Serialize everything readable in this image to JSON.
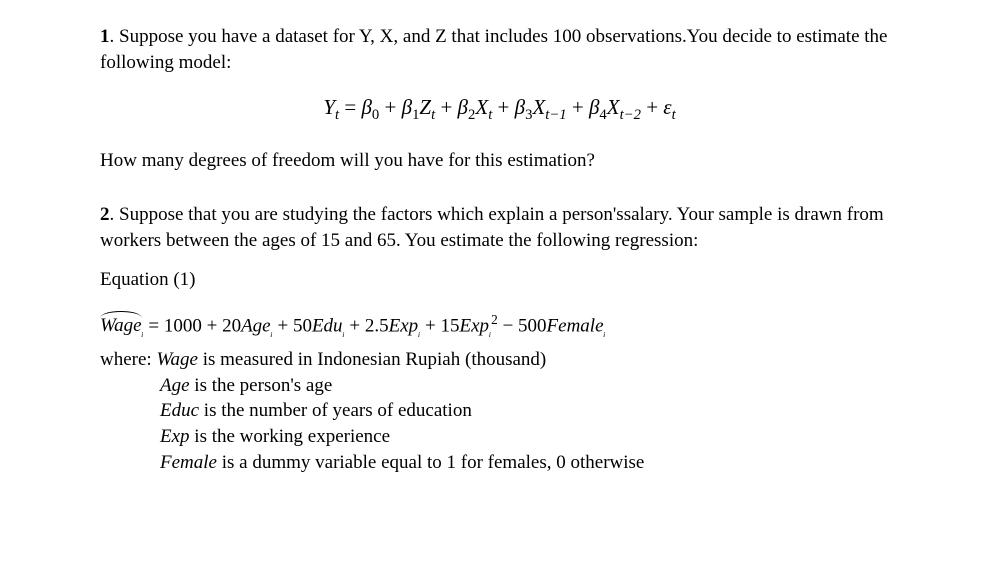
{
  "q1": {
    "number": "1",
    "intro_a": ". Suppose you have a dataset for Y, X, and Z that includes 100 observations.You decide to estimate the following model:",
    "eq": {
      "lhs_var": "Y",
      "lhs_sub": "t",
      "eq_sign": " = ",
      "b0": "β",
      "b0_sub": "0",
      "plus": " + ",
      "b1": "β",
      "b1_sub": "1",
      "z": "Z",
      "z_sub": "t",
      "b2": "β",
      "b2_sub": "2",
      "x": "X",
      "x_sub": "t",
      "b3": "β",
      "b3_sub": "3",
      "x_lag1": "X",
      "x_lag1_sub": "t−1",
      "b4": "β",
      "b4_sub": "4",
      "x_lag2": "X",
      "x_lag2_sub": "t−2",
      "eps": "ε",
      "eps_sub": "t"
    },
    "follow": "How many degrees of freedom will you have for this estimation?"
  },
  "q2": {
    "number": "2",
    "intro": ". Suppose that you are studying the factors which explain a person'ssalary. Your sample is drawn from workers between the ages of 15 and 65. You estimate the following regression:",
    "eq_label": "Equation (1)",
    "wage_eq": {
      "lhs": "Wage",
      "lhs_sub": "ᵢ",
      "eq_sign": " = ",
      "c0": "1000",
      "plus": " + ",
      "c1": "20",
      "v1": "Age",
      "v1_sub": "ᵢ",
      "c2": "50",
      "v2": "Edu",
      "v2_sub": "ᵢ",
      "c3": "2.5",
      "v3": "Exp",
      "v3_sub": "ᵢ",
      "c4": "15",
      "v4": "Exp",
      "v4_sub": "ᵢ",
      "v4_sup": "2",
      "minus": " − ",
      "c5": "500",
      "v5": "Female",
      "v5_sub": "ᵢ"
    },
    "defs": {
      "where_label": "where: ",
      "wage_var": "Wage",
      "wage_def": " is measured in Indonesian Rupiah (thousand)",
      "age_var": "Age",
      "age_def": " is the person's age",
      "educ_var": "Educ",
      "educ_def": " is the number of years of education",
      "exp_var": "Exp",
      "exp_def": " is the working experience",
      "female_var": "Female",
      "female_def": " is a dummy variable equal to 1 for females, 0 otherwise"
    }
  }
}
